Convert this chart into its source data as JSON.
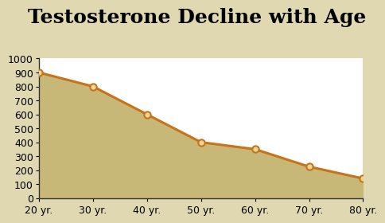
{
  "title": "Testosterone Decline with Age",
  "x_values": [
    20,
    30,
    40,
    50,
    60,
    70,
    80
  ],
  "y_values": [
    900,
    800,
    600,
    400,
    350,
    225,
    140
  ],
  "x_tick_labels": [
    "20 yr.",
    "30 yr.",
    "40 yr.",
    "50 yr.",
    "60 yr.",
    "70 yr.",
    "80 yr."
  ],
  "ylim": [
    0,
    1000
  ],
  "xlim": [
    20,
    80
  ],
  "yticks": [
    0,
    100,
    200,
    300,
    400,
    500,
    600,
    700,
    800,
    900,
    1000
  ],
  "line_color": "#c8721a",
  "fill_color": "#c8b878",
  "marker_face": "#e8d898",
  "background_outer": "#e0d8b0",
  "background_plot": "#ffffff",
  "title_fontsize": 18,
  "tick_fontsize": 9,
  "line_width": 2.2,
  "marker_size": 6
}
